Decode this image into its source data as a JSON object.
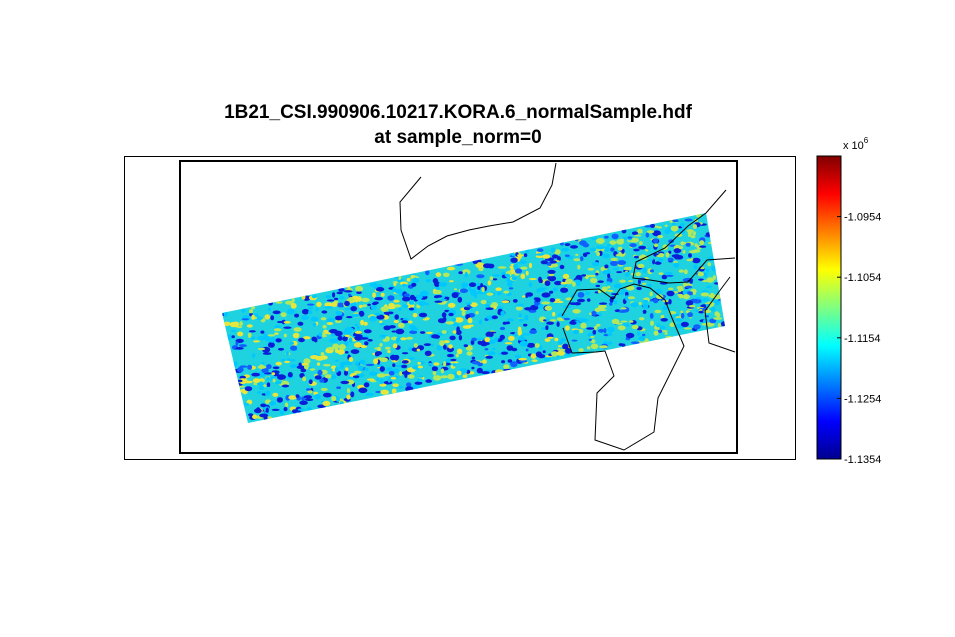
{
  "chart_data": {
    "type": "heatmap",
    "title": "1B21_CSI.990906.10217.KORA.6_normalSample.hdf",
    "subtitle": "at sample_norm=0",
    "colorbar": {
      "exponent_label": "x 10",
      "exponent": "6",
      "range": [
        -1.1354,
        -1.0854
      ],
      "ticks": [
        -1.0954,
        -1.1054,
        -1.1154,
        -1.1254,
        -1.1354
      ],
      "tick_labels": [
        "-1.0954",
        "-1.1054",
        "-1.1154",
        "-1.1254",
        "-1.1354"
      ],
      "colormap": "jet"
    },
    "swath_mean": -1.116,
    "colors": {
      "frame": "#000000",
      "coastline": "#000000",
      "background": "#ffffff"
    }
  }
}
